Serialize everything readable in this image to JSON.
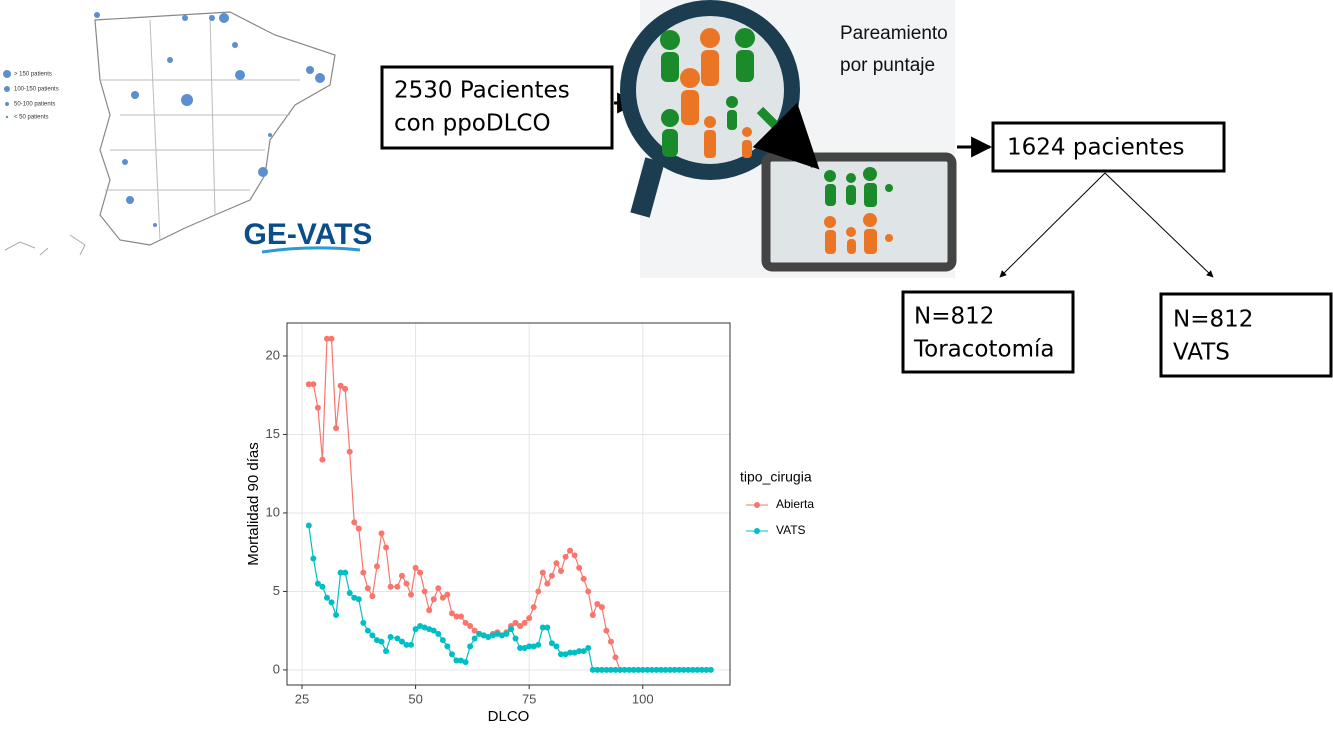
{
  "map": {
    "legend": [
      "> 150 patients",
      "100-150 patients",
      "50-100 patients",
      "< 50 patients"
    ],
    "logo": "GE-VATS"
  },
  "flow": {
    "source": [
      "2530  Pacientes",
      "con ppoDLCO"
    ],
    "method": [
      "Pareamiento",
      "por puntaje"
    ],
    "matched": "1624 pacientes",
    "arms": [
      [
        "N=812",
        "Toracotomía"
      ],
      [
        "N=812",
        "VATS"
      ]
    ]
  },
  "chart_data": {
    "type": "line",
    "x_label": "DLCO",
    "y_label": "Mortalidad 90 días",
    "legend_title": "tipo_cirugia",
    "xlim": [
      21.7,
      119.2
    ],
    "ylim": [
      -0.96,
      22.1
    ],
    "xticks": [
      25,
      50,
      75,
      100
    ],
    "yticks": [
      0,
      5,
      10,
      15,
      20
    ],
    "grid": true,
    "series": [
      {
        "name": "Abierta",
        "color": "#F8766D",
        "x": [
          26.5,
          27.5,
          28.5,
          29.5,
          30.5,
          31.5,
          32.5,
          33.5,
          34.5,
          35.5,
          36.5,
          37.5,
          38.5,
          39.5,
          40.5,
          41.5,
          42.5,
          43.5,
          44.5,
          46,
          47,
          48,
          49,
          50,
          51,
          52,
          53,
          54,
          55,
          56,
          57,
          58,
          59,
          60,
          61,
          62,
          63,
          64,
          65,
          66,
          67,
          68,
          69,
          70,
          71,
          72,
          73,
          74,
          75,
          76,
          77,
          78,
          79,
          80,
          81,
          82,
          83,
          84,
          85,
          86,
          87,
          88,
          89,
          90,
          91,
          92,
          93,
          94,
          95
        ],
        "values": [
          18.2,
          18.2,
          16.7,
          13.4,
          21.1,
          21.1,
          15.4,
          18.1,
          17.9,
          13.9,
          9.4,
          9.0,
          6.2,
          5.2,
          4.7,
          6.6,
          8.7,
          7.8,
          5.3,
          5.3,
          6.0,
          5.5,
          4.8,
          6.5,
          6.2,
          5.0,
          3.8,
          4.5,
          5.2,
          4.6,
          4.8,
          3.6,
          3.4,
          3.4,
          3.0,
          2.8,
          2.5,
          2.3,
          2.2,
          2.1,
          2.3,
          2.4,
          2.2,
          2.4,
          2.8,
          3.0,
          2.8,
          3.0,
          3.3,
          4.0,
          5.0,
          6.2,
          5.5,
          6.0,
          6.8,
          6.3,
          7.2,
          7.6,
          7.3,
          6.5,
          5.8,
          5.0,
          3.5,
          4.2,
          4.0,
          2.5,
          1.8,
          0.8,
          0
        ]
      },
      {
        "name": "VATS",
        "color": "#00BFC4",
        "x": [
          26.5,
          27.5,
          28.5,
          29.5,
          30.5,
          31.5,
          32.5,
          33.5,
          34.5,
          35.5,
          36.5,
          37.5,
          38.5,
          39.5,
          40.5,
          41.5,
          42.5,
          43.5,
          44.5,
          46,
          47,
          48,
          49,
          50,
          51,
          52,
          53,
          54,
          55,
          56,
          57,
          58,
          59,
          60,
          61,
          62,
          63,
          64,
          65,
          66,
          67,
          68,
          69,
          70,
          71,
          72,
          73,
          74,
          75,
          76,
          77,
          78,
          79,
          80,
          81,
          82,
          83,
          84,
          85,
          86,
          87,
          88,
          89,
          90,
          91,
          92,
          93,
          94,
          95,
          96,
          97,
          98,
          99,
          100,
          101,
          102,
          103,
          104,
          105,
          106,
          107,
          108,
          109,
          110,
          111,
          112,
          113,
          114,
          115
        ],
        "values": [
          9.2,
          7.1,
          5.5,
          5.3,
          4.6,
          4.3,
          3.5,
          6.2,
          6.2,
          4.9,
          4.6,
          4.5,
          3.0,
          2.5,
          2.2,
          1.9,
          1.8,
          1.2,
          2.1,
          2.0,
          1.8,
          1.6,
          1.6,
          2.6,
          2.8,
          2.7,
          2.6,
          2.5,
          2.3,
          1.9,
          1.5,
          1.0,
          0.6,
          0.6,
          0.5,
          1.5,
          2.0,
          2.3,
          2.2,
          2.1,
          2.2,
          2.3,
          2.2,
          2.3,
          2.6,
          2.0,
          1.4,
          1.4,
          1.5,
          1.5,
          1.6,
          2.7,
          2.7,
          1.7,
          1.5,
          1.0,
          1.0,
          1.1,
          1.1,
          1.2,
          1.2,
          1.4,
          0,
          0,
          0,
          0,
          0,
          0,
          0,
          0,
          0,
          0,
          0,
          0,
          0,
          0,
          0,
          0,
          0,
          0,
          0,
          0,
          0,
          0,
          0,
          0,
          0,
          0,
          0
        ]
      }
    ]
  }
}
